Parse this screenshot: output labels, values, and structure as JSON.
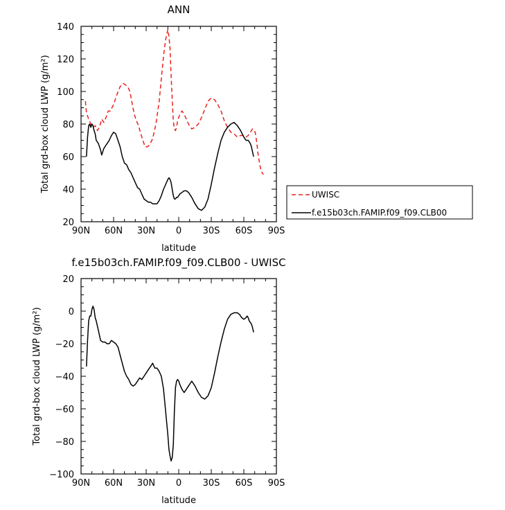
{
  "chart_data": [
    {
      "type": "line",
      "title": "ANN",
      "xlabel": "latitude",
      "ylabel": "Total grd-box cloud LWP (g/m²)",
      "xlim": [
        90,
        -90
      ],
      "ylim": [
        20,
        140
      ],
      "x_ticks": [
        90,
        60,
        30,
        0,
        -30,
        -60,
        -90
      ],
      "x_tick_labels": [
        "90N",
        "60N",
        "30N",
        "0",
        "30S",
        "60S",
        "90S"
      ],
      "y_ticks": [
        20,
        40,
        60,
        80,
        100,
        120,
        140
      ],
      "y_tick_labels": [
        "20",
        "40",
        "60",
        "80",
        "100",
        "120",
        "140"
      ],
      "legend_position": "right",
      "series": [
        {
          "name": "UWISC",
          "color": "#e8211d",
          "dash": "dashed",
          "x": [
            86,
            85,
            83,
            81,
            79,
            77,
            75,
            73,
            71,
            69,
            67,
            65,
            63,
            60,
            57,
            54,
            51,
            49,
            47,
            45,
            43,
            41,
            39,
            37,
            35,
            33,
            31,
            29,
            27,
            24,
            21,
            18,
            16,
            14,
            12,
            10,
            9,
            8,
            7,
            6,
            5,
            4,
            3,
            2,
            1,
            -1,
            -3,
            -5,
            -7,
            -9,
            -12,
            -15,
            -18,
            -21,
            -24,
            -27,
            -30,
            -33,
            -36,
            -39,
            -42,
            -45,
            -48,
            -51,
            -54,
            -57,
            -60,
            -62,
            -64,
            -66,
            -68,
            -70,
            -71,
            -72,
            -73,
            -74,
            -75,
            -76,
            -78
          ],
          "values": [
            94,
            87,
            83,
            80,
            78,
            79,
            76,
            78,
            83,
            81,
            84,
            88,
            88,
            92,
            98,
            103,
            105,
            104,
            103,
            100,
            93,
            86,
            82,
            79,
            74,
            70,
            66,
            66,
            67,
            71,
            80,
            94,
            108,
            122,
            132,
            138,
            134,
            126,
            110,
            95,
            82,
            77,
            76,
            78,
            82,
            86,
            88,
            86,
            83,
            80,
            77,
            78,
            80,
            84,
            89,
            94,
            96,
            95,
            92,
            88,
            82,
            78,
            75,
            74,
            72,
            73,
            73,
            72,
            73,
            75,
            77,
            76,
            73,
            68,
            62,
            58,
            54,
            51,
            49
          ]
        },
        {
          "name": "f.e15b03ch.FAMIP.f09_f09.CLB00",
          "color": "#000000",
          "dash": "solid",
          "x": [
            85,
            84,
            83,
            82,
            81,
            80,
            79,
            78,
            77,
            76,
            74,
            72,
            71,
            69,
            67,
            66,
            64,
            62,
            60,
            58,
            56,
            54,
            52,
            50,
            48,
            46,
            44,
            42,
            40,
            38,
            36,
            34,
            32,
            30,
            28,
            26,
            24,
            22,
            20,
            18,
            16,
            14,
            12,
            10,
            9,
            8,
            7,
            6,
            5,
            4,
            3,
            2,
            1,
            0,
            -1,
            -3,
            -5,
            -7,
            -9,
            -12,
            -15,
            -18,
            -21,
            -24,
            -27,
            -30,
            -33,
            -36,
            -39,
            -42,
            -45,
            -48,
            -51,
            -54,
            -57,
            -60,
            -62,
            -64,
            -66,
            -67,
            -68,
            -69
          ],
          "values": [
            60,
            72,
            79,
            80,
            78,
            80,
            79,
            76,
            74,
            70,
            68,
            64,
            61,
            65,
            67,
            68,
            70,
            73,
            75,
            74,
            70,
            66,
            60,
            56,
            55,
            52,
            50,
            47,
            44,
            41,
            40,
            37,
            34,
            33,
            32,
            32,
            31,
            31,
            31,
            33,
            36,
            40,
            43,
            46,
            47,
            46,
            44,
            40,
            36,
            34,
            34,
            35,
            35,
            36,
            37,
            38,
            39,
            39,
            38,
            35,
            31,
            28,
            27,
            29,
            34,
            43,
            53,
            62,
            70,
            75,
            78,
            80,
            81,
            79,
            76,
            72,
            70,
            70,
            68,
            66,
            63,
            60
          ]
        }
      ]
    },
    {
      "type": "line",
      "title": "f.e15b03ch.FAMIP.f09_f09.CLB00 - UWISC",
      "xlabel": "latitude",
      "ylabel": "Total grd-box cloud LWP (g/m²)",
      "xlim": [
        90,
        -90
      ],
      "ylim": [
        -100,
        20
      ],
      "x_ticks": [
        90,
        60,
        30,
        0,
        -30,
        -60,
        -90
      ],
      "x_tick_labels": [
        "90N",
        "60N",
        "30N",
        "0",
        "30S",
        "60S",
        "90S"
      ],
      "y_ticks": [
        -100,
        -80,
        -60,
        -40,
        -20,
        0,
        20
      ],
      "y_tick_labels": [
        "−100",
        "−80",
        "−60",
        "−40",
        "−20",
        "0",
        "20"
      ],
      "series": [
        {
          "color": "#000000",
          "dash": "solid",
          "x": [
            85,
            84,
            83,
            82,
            81,
            80,
            79,
            78,
            77,
            76,
            74,
            72,
            70,
            68,
            66,
            64,
            62,
            60,
            58,
            56,
            54,
            52,
            50,
            48,
            46,
            44,
            42,
            40,
            38,
            36,
            34,
            32,
            30,
            28,
            26,
            24,
            22,
            20,
            18,
            16,
            14,
            12,
            10,
            9,
            8,
            7,
            6,
            5,
            4,
            3,
            2,
            1,
            0,
            -1,
            -3,
            -5,
            -7,
            -9,
            -12,
            -15,
            -18,
            -21,
            -24,
            -27,
            -30,
            -33,
            -36,
            -39,
            -42,
            -45,
            -48,
            -51,
            -54,
            -56,
            -58,
            -60,
            -62,
            -63,
            -64,
            -65,
            -66,
            -67,
            -68,
            -69
          ],
          "values": [
            -34,
            -18,
            -6,
            -3,
            -3,
            1,
            3,
            1,
            -4,
            -6,
            -12,
            -18,
            -19,
            -19,
            -20,
            -20,
            -18,
            -19,
            -20,
            -22,
            -27,
            -32,
            -37,
            -40,
            -42,
            -45,
            -46,
            -45,
            -43,
            -41,
            -42,
            -40,
            -38,
            -36,
            -34,
            -32,
            -35,
            -35,
            -37,
            -40,
            -48,
            -62,
            -76,
            -85,
            -89,
            -92,
            -90,
            -82,
            -62,
            -47,
            -43,
            -42,
            -43,
            -45,
            -48,
            -50,
            -48,
            -46,
            -43,
            -46,
            -50,
            -53,
            -54,
            -52,
            -47,
            -38,
            -28,
            -19,
            -11,
            -5,
            -2,
            -1,
            -1,
            -2,
            -4,
            -5,
            -4,
            -3,
            -4,
            -6,
            -7,
            -8,
            -10,
            -13
          ]
        }
      ]
    }
  ]
}
